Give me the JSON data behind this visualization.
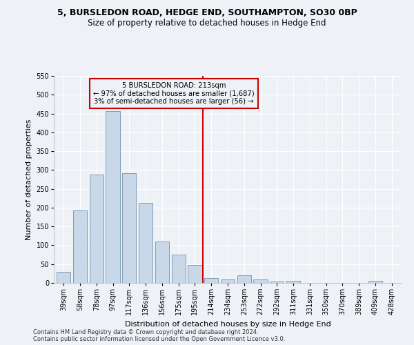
{
  "title1": "5, BURSLEDON ROAD, HEDGE END, SOUTHAMPTON, SO30 0BP",
  "title2": "Size of property relative to detached houses in Hedge End",
  "xlabel": "Distribution of detached houses by size in Hedge End",
  "ylabel": "Number of detached properties",
  "categories": [
    "39sqm",
    "58sqm",
    "78sqm",
    "97sqm",
    "117sqm",
    "136sqm",
    "156sqm",
    "175sqm",
    "195sqm",
    "214sqm",
    "234sqm",
    "253sqm",
    "272sqm",
    "292sqm",
    "311sqm",
    "331sqm",
    "350sqm",
    "370sqm",
    "389sqm",
    "409sqm",
    "428sqm"
  ],
  "values": [
    30,
    192,
    287,
    457,
    292,
    213,
    110,
    75,
    48,
    12,
    10,
    20,
    9,
    4,
    5,
    0,
    0,
    0,
    0,
    5,
    0
  ],
  "bar_color": "#c8d8e8",
  "bar_edge_color": "#7090aa",
  "ref_line_index": 9,
  "ref_line_label": "5 BURSLEDON ROAD: 213sqm",
  "annotation_line1": "← 97% of detached houses are smaller (1,687)",
  "annotation_line2": "3% of semi-detached houses are larger (56) →",
  "vline_color": "#cc0000",
  "box_edge_color": "#cc0000",
  "footer1": "Contains HM Land Registry data © Crown copyright and database right 2024.",
  "footer2": "Contains public sector information licensed under the Open Government Licence v3.0.",
  "ylim": [
    0,
    550
  ],
  "yticks": [
    0,
    50,
    100,
    150,
    200,
    250,
    300,
    350,
    400,
    450,
    500,
    550
  ],
  "bg_color": "#eef2f7",
  "grid_color": "#ffffff",
  "title1_fontsize": 9,
  "title2_fontsize": 8.5,
  "xlabel_fontsize": 8,
  "ylabel_fontsize": 8,
  "tick_fontsize": 7,
  "footer_fontsize": 6
}
